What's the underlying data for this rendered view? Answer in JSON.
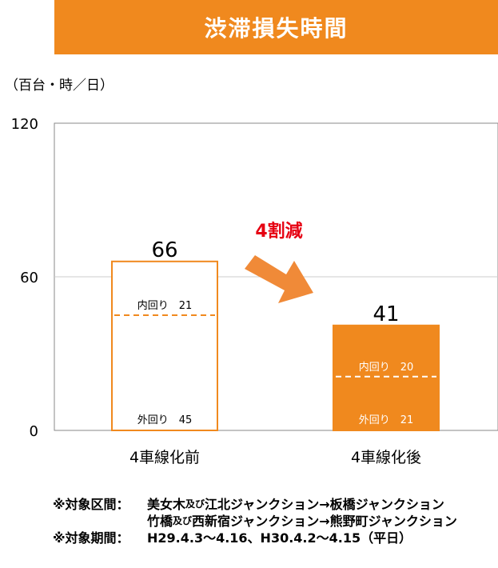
{
  "title": "渋滞損失時間",
  "unit_label": "（百台・時／日）",
  "colors": {
    "accent": "#f0891e",
    "arrow": "#f08a38",
    "reduction": "#e60012",
    "grid": "#cccccc",
    "axis": "#888888"
  },
  "chart_data": {
    "type": "bar",
    "title": "渋滞損失時間",
    "ylabel": "（百台・時／日）",
    "ylim": [
      0,
      120
    ],
    "yticks": [
      "0",
      "60",
      "120"
    ],
    "ytick_values": [
      0,
      60,
      120
    ],
    "categories": [
      "4車線化前",
      "4車線化後"
    ],
    "values": [
      66,
      41
    ],
    "value_labels": [
      "66",
      "41"
    ],
    "segments": [
      {
        "outer_label": "外回り",
        "outer_value": 45,
        "inner_label": "内回り",
        "inner_value": 21
      },
      {
        "outer_label": "外回り",
        "outer_value": 21,
        "inner_label": "内回り",
        "inner_value": 20
      }
    ],
    "segment_labels": [
      {
        "outer": "外回り　45",
        "inner": "内回り　21"
      },
      {
        "outer": "外回り　21",
        "inner": "内回り　20"
      }
    ],
    "annotation": "4割減"
  },
  "notes": {
    "row1_label": "※対象区間：",
    "row1_text_a": "美女木",
    "row1_small_a": "及び",
    "row1_text_b": "江北ジャンクション→板橋ジャンクション",
    "row2_text_a": "竹橋",
    "row2_small_a": "及び",
    "row2_text_b": "西新宿ジャンクション→熊野町ジャンクション",
    "row3_label": "※対象期間：",
    "row3_text": "H29.4.3～4.16、H30.4.2～4.15（平日）"
  }
}
